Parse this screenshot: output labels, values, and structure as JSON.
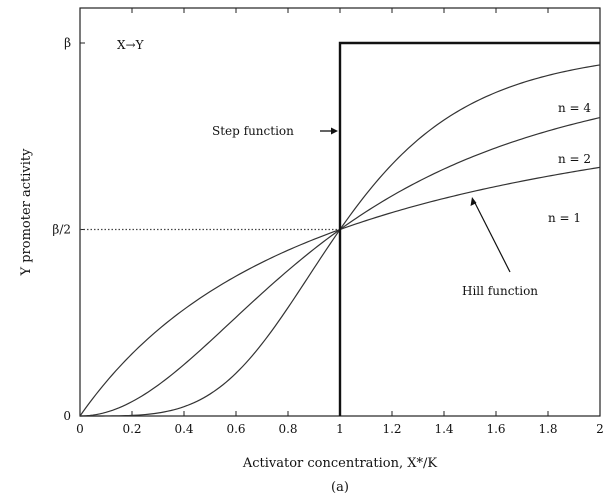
{
  "chart_data": {
    "type": "line",
    "panel_label": "(a)",
    "inset_label": "X→Y",
    "xlabel": "Activator concentration, X*/K",
    "ylabel": "Y promoter activity",
    "xlim": [
      0,
      2
    ],
    "ylim": [
      0,
      1
    ],
    "x_ticks": [
      0,
      0.2,
      0.4,
      0.6,
      0.8,
      1,
      1.2,
      1.4,
      1.6,
      1.8,
      2
    ],
    "x_tick_labels": [
      "0",
      "0.2",
      "0.4",
      "0.6",
      "0.8",
      "1",
      "1.2",
      "1.4",
      "1.6",
      "1.8",
      "2"
    ],
    "y_ticks": [
      0,
      0.5,
      1
    ],
    "y_tick_labels": [
      "0",
      "β/2",
      "β"
    ],
    "reference_line": {
      "y": 0.5,
      "x_from": 0,
      "x_to": 1,
      "style": "dotted"
    },
    "series": [
      {
        "name": "n = 1",
        "label": "n = 1",
        "function": "hill",
        "n": 1
      },
      {
        "name": "n = 2",
        "label": "n = 2",
        "function": "hill",
        "n": 2
      },
      {
        "name": "n = 4",
        "label": "n = 4",
        "function": "hill",
        "n": 4
      },
      {
        "name": "Step function",
        "function": "step",
        "threshold": 1
      }
    ],
    "annotations": {
      "step": "Step function",
      "hill": "Hill function"
    },
    "grid": false,
    "legend": "none"
  }
}
